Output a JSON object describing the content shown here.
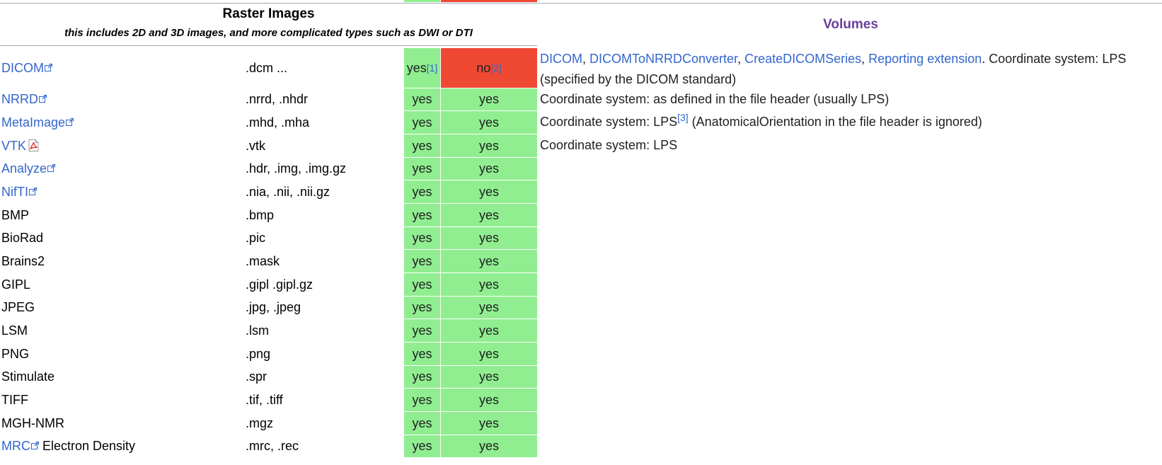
{
  "header": {
    "raster_title": "Raster Images",
    "raster_subtitle": "this includes 2D and 3D images, and more complicated types such as DWI or DTI",
    "volumes_title": "Volumes"
  },
  "colors": {
    "yes": "#90ee90",
    "no": "#ef4934",
    "link": "#3366cc",
    "volumes_heading": "#6b3f9c"
  },
  "rows": [
    {
      "name": "DICOM",
      "name_is_link": true,
      "name_icon": "external-link-icon",
      "extensions": ".dcm ...",
      "read": "yes",
      "read_ref": "[1]",
      "write": "no",
      "write_ref": "[2]",
      "desc_links": [
        "DICOM",
        "DICOMToNRRDConverter",
        "CreateDICOMSeries",
        "Reporting extension"
      ],
      "desc_text": ". Coordinate system: LPS (specified by the DICOM standard)"
    },
    {
      "name": "NRRD",
      "name_is_link": true,
      "name_icon": "external-link-icon",
      "extensions": ".nrrd, .nhdr",
      "read": "yes",
      "write": "yes",
      "desc_text": "Coordinate system: as defined in the file header (usually LPS)"
    },
    {
      "name": "MetaImage",
      "name_is_link": true,
      "name_icon": "external-link-icon",
      "extensions": ".mhd, .mha",
      "read": "yes",
      "write": "yes",
      "desc_text_before_ref": "Coordinate system: LPS",
      "desc_ref": "[3]",
      "desc_text_after_ref": " (AnatomicalOrientation in the file header is ignored)"
    },
    {
      "name": "VTK",
      "name_is_link": true,
      "name_icon": "pdf-icon",
      "extensions": ".vtk",
      "read": "yes",
      "write": "yes",
      "desc_text": "Coordinate system: LPS"
    },
    {
      "name": "Analyze",
      "name_is_link": true,
      "name_icon": "external-link-icon",
      "extensions": ".hdr, .img, .img.gz",
      "read": "yes",
      "write": "yes",
      "desc_text": ""
    },
    {
      "name": "NifTI",
      "name_is_link": true,
      "name_icon": "external-link-icon",
      "extensions": ".nia, .nii, .nii.gz",
      "read": "yes",
      "write": "yes",
      "desc_text": ""
    },
    {
      "name": "BMP",
      "name_is_link": false,
      "extensions": ".bmp",
      "read": "yes",
      "write": "yes",
      "desc_text": ""
    },
    {
      "name": "BioRad",
      "name_is_link": false,
      "extensions": ".pic",
      "read": "yes",
      "write": "yes",
      "desc_text": ""
    },
    {
      "name": "Brains2",
      "name_is_link": false,
      "extensions": ".mask",
      "read": "yes",
      "write": "yes",
      "desc_text": ""
    },
    {
      "name": "GIPL",
      "name_is_link": false,
      "extensions": ".gipl .gipl.gz",
      "read": "yes",
      "write": "yes",
      "desc_text": ""
    },
    {
      "name": "JPEG",
      "name_is_link": false,
      "extensions": ".jpg, .jpeg",
      "read": "yes",
      "write": "yes",
      "desc_text": ""
    },
    {
      "name": "LSM",
      "name_is_link": false,
      "extensions": ".lsm",
      "read": "yes",
      "write": "yes",
      "desc_text": ""
    },
    {
      "name": "PNG",
      "name_is_link": false,
      "extensions": ".png",
      "read": "yes",
      "write": "yes",
      "desc_text": ""
    },
    {
      "name": "Stimulate",
      "name_is_link": false,
      "extensions": ".spr",
      "read": "yes",
      "write": "yes",
      "desc_text": ""
    },
    {
      "name": "TIFF",
      "name_is_link": false,
      "extensions": ".tif, .tiff",
      "read": "yes",
      "write": "yes",
      "desc_text": ""
    },
    {
      "name": "MGH-NMR",
      "name_is_link": false,
      "extensions": ".mgz",
      "read": "yes",
      "write": "yes",
      "desc_text": ""
    },
    {
      "name": "MRC",
      "name_is_link": true,
      "name_icon": "external-link-icon",
      "name_suffix": " Electron Density",
      "extensions": ".mrc, .rec",
      "read": "yes",
      "write": "yes",
      "desc_text": ""
    }
  ]
}
